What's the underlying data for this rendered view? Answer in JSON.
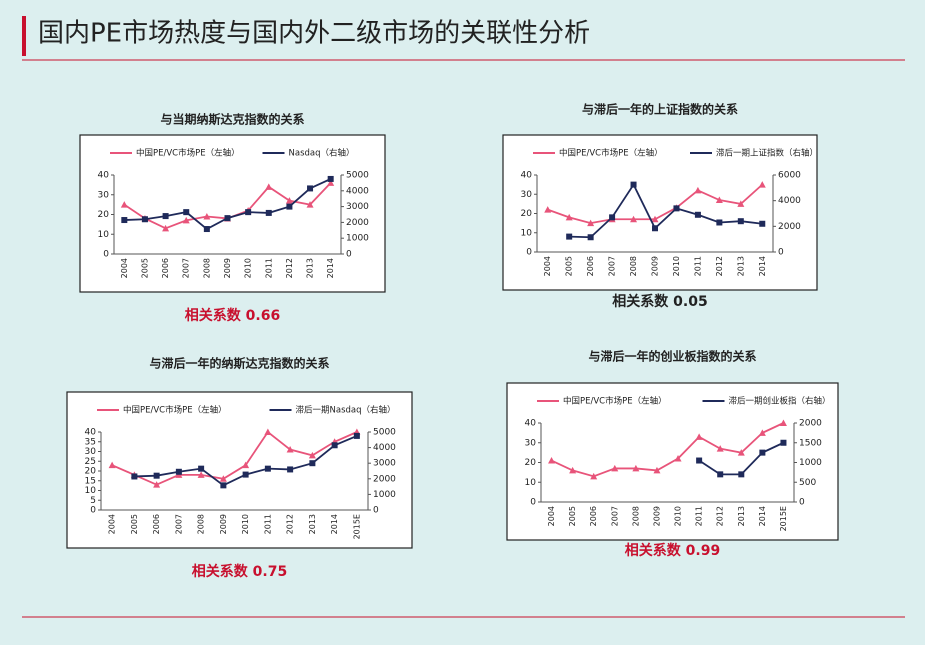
{
  "slide_title": "国内PE市场热度与国内外二级市场的关联性分析",
  "chart_data": [
    {
      "type": "line",
      "title": "与当期纳斯达克指数的关系",
      "annotation": "相关系数 0.66",
      "annotation_color": "#c8102e",
      "categories": [
        "2004",
        "2005",
        "2006",
        "2007",
        "2008",
        "2009",
        "2010",
        "2011",
        "2012",
        "2013",
        "2014"
      ],
      "ylim": [
        0,
        40
      ],
      "yticks": [
        0,
        10,
        20,
        30,
        40
      ],
      "y2lim": [
        0,
        5000
      ],
      "y2ticks": [
        0,
        1000,
        2000,
        3000,
        4000,
        5000
      ],
      "series": [
        {
          "name": "中国PE/VC市场PE（左轴）",
          "color": "#e8547a",
          "values": [
            25,
            18,
            13,
            17,
            19,
            18,
            22,
            34,
            27,
            25,
            36
          ]
        },
        {
          "name": "Nasdaq（右轴）",
          "color": "#1f2a5a",
          "axis": "y2",
          "values": [
            2150,
            2200,
            2400,
            2650,
            1580,
            2270,
            2650,
            2600,
            3000,
            4150,
            4750
          ]
        }
      ]
    },
    {
      "type": "line",
      "title": "与滞后一年的上证指数的关系",
      "annotation": "相关系数 0.05",
      "annotation_color": "#222222",
      "categories": [
        "2004",
        "2005",
        "2006",
        "2007",
        "2008",
        "2009",
        "2010",
        "2011",
        "2012",
        "2013",
        "2014"
      ],
      "ylim": [
        0,
        40
      ],
      "yticks": [
        0,
        10,
        20,
        30,
        40
      ],
      "y2lim": [
        0,
        6000
      ],
      "y2ticks": [
        0,
        2000,
        4000,
        6000
      ],
      "series": [
        {
          "name": "中国PE/VC市场PE（左轴）",
          "color": "#e8547a",
          "values": [
            22,
            18,
            15,
            17,
            17,
            17,
            23,
            32,
            27,
            25,
            35
          ]
        },
        {
          "name": "滞后一期上证指数（右轴）",
          "color": "#1f2a5a",
          "axis": "y2",
          "values": [
            null,
            1200,
            1150,
            2700,
            5250,
            1850,
            3400,
            2900,
            2300,
            2400,
            2200
          ]
        }
      ]
    },
    {
      "type": "line",
      "title": "与滞后一年的纳斯达克指数的关系",
      "annotation": "相关系数 0.75",
      "annotation_color": "#c8102e",
      "categories": [
        "2004",
        "2005",
        "2006",
        "2007",
        "2008",
        "2009",
        "2010",
        "2011",
        "2012",
        "2013",
        "2014",
        "2015E"
      ],
      "ylim": [
        0,
        40
      ],
      "yticks": [
        0,
        5,
        10,
        15,
        20,
        25,
        30,
        35,
        40
      ],
      "y2lim": [
        0,
        5000
      ],
      "y2ticks": [
        0,
        1000,
        2000,
        3000,
        4000,
        5000
      ],
      "series": [
        {
          "name": "中国PE/VC市场PE（左轴）",
          "color": "#e8547a",
          "values": [
            23,
            18,
            13,
            18,
            18,
            16,
            23,
            40,
            31,
            28,
            35,
            40
          ]
        },
        {
          "name": "滞后一期Nasdaq（右轴）",
          "color": "#1f2a5a",
          "axis": "y2",
          "values": [
            null,
            2150,
            2200,
            2450,
            2650,
            1580,
            2270,
            2650,
            2600,
            3000,
            4150,
            4750
          ]
        }
      ]
    },
    {
      "type": "line",
      "title": "与滞后一年的创业板指数的关系",
      "annotation": "相关系数 0.99",
      "annotation_color": "#c8102e",
      "categories": [
        "2004",
        "2005",
        "2006",
        "2007",
        "2008",
        "2009",
        "2010",
        "2011",
        "2012",
        "2013",
        "2014",
        "2015E"
      ],
      "ylim": [
        0,
        40
      ],
      "yticks": [
        0,
        10,
        20,
        30,
        40
      ],
      "y2lim": [
        0,
        2000
      ],
      "y2ticks": [
        0,
        500,
        1000,
        1500,
        2000
      ],
      "series": [
        {
          "name": "中国PE/VC市场PE（左轴）",
          "color": "#e8547a",
          "values": [
            21,
            16,
            13,
            17,
            17,
            16,
            22,
            33,
            27,
            25,
            35,
            40
          ]
        },
        {
          "name": "滞后一期创业板指（右轴）",
          "color": "#1f2a5a",
          "axis": "y2",
          "values": [
            null,
            null,
            null,
            null,
            null,
            null,
            null,
            1050,
            700,
            700,
            1250,
            1500
          ]
        }
      ]
    }
  ]
}
